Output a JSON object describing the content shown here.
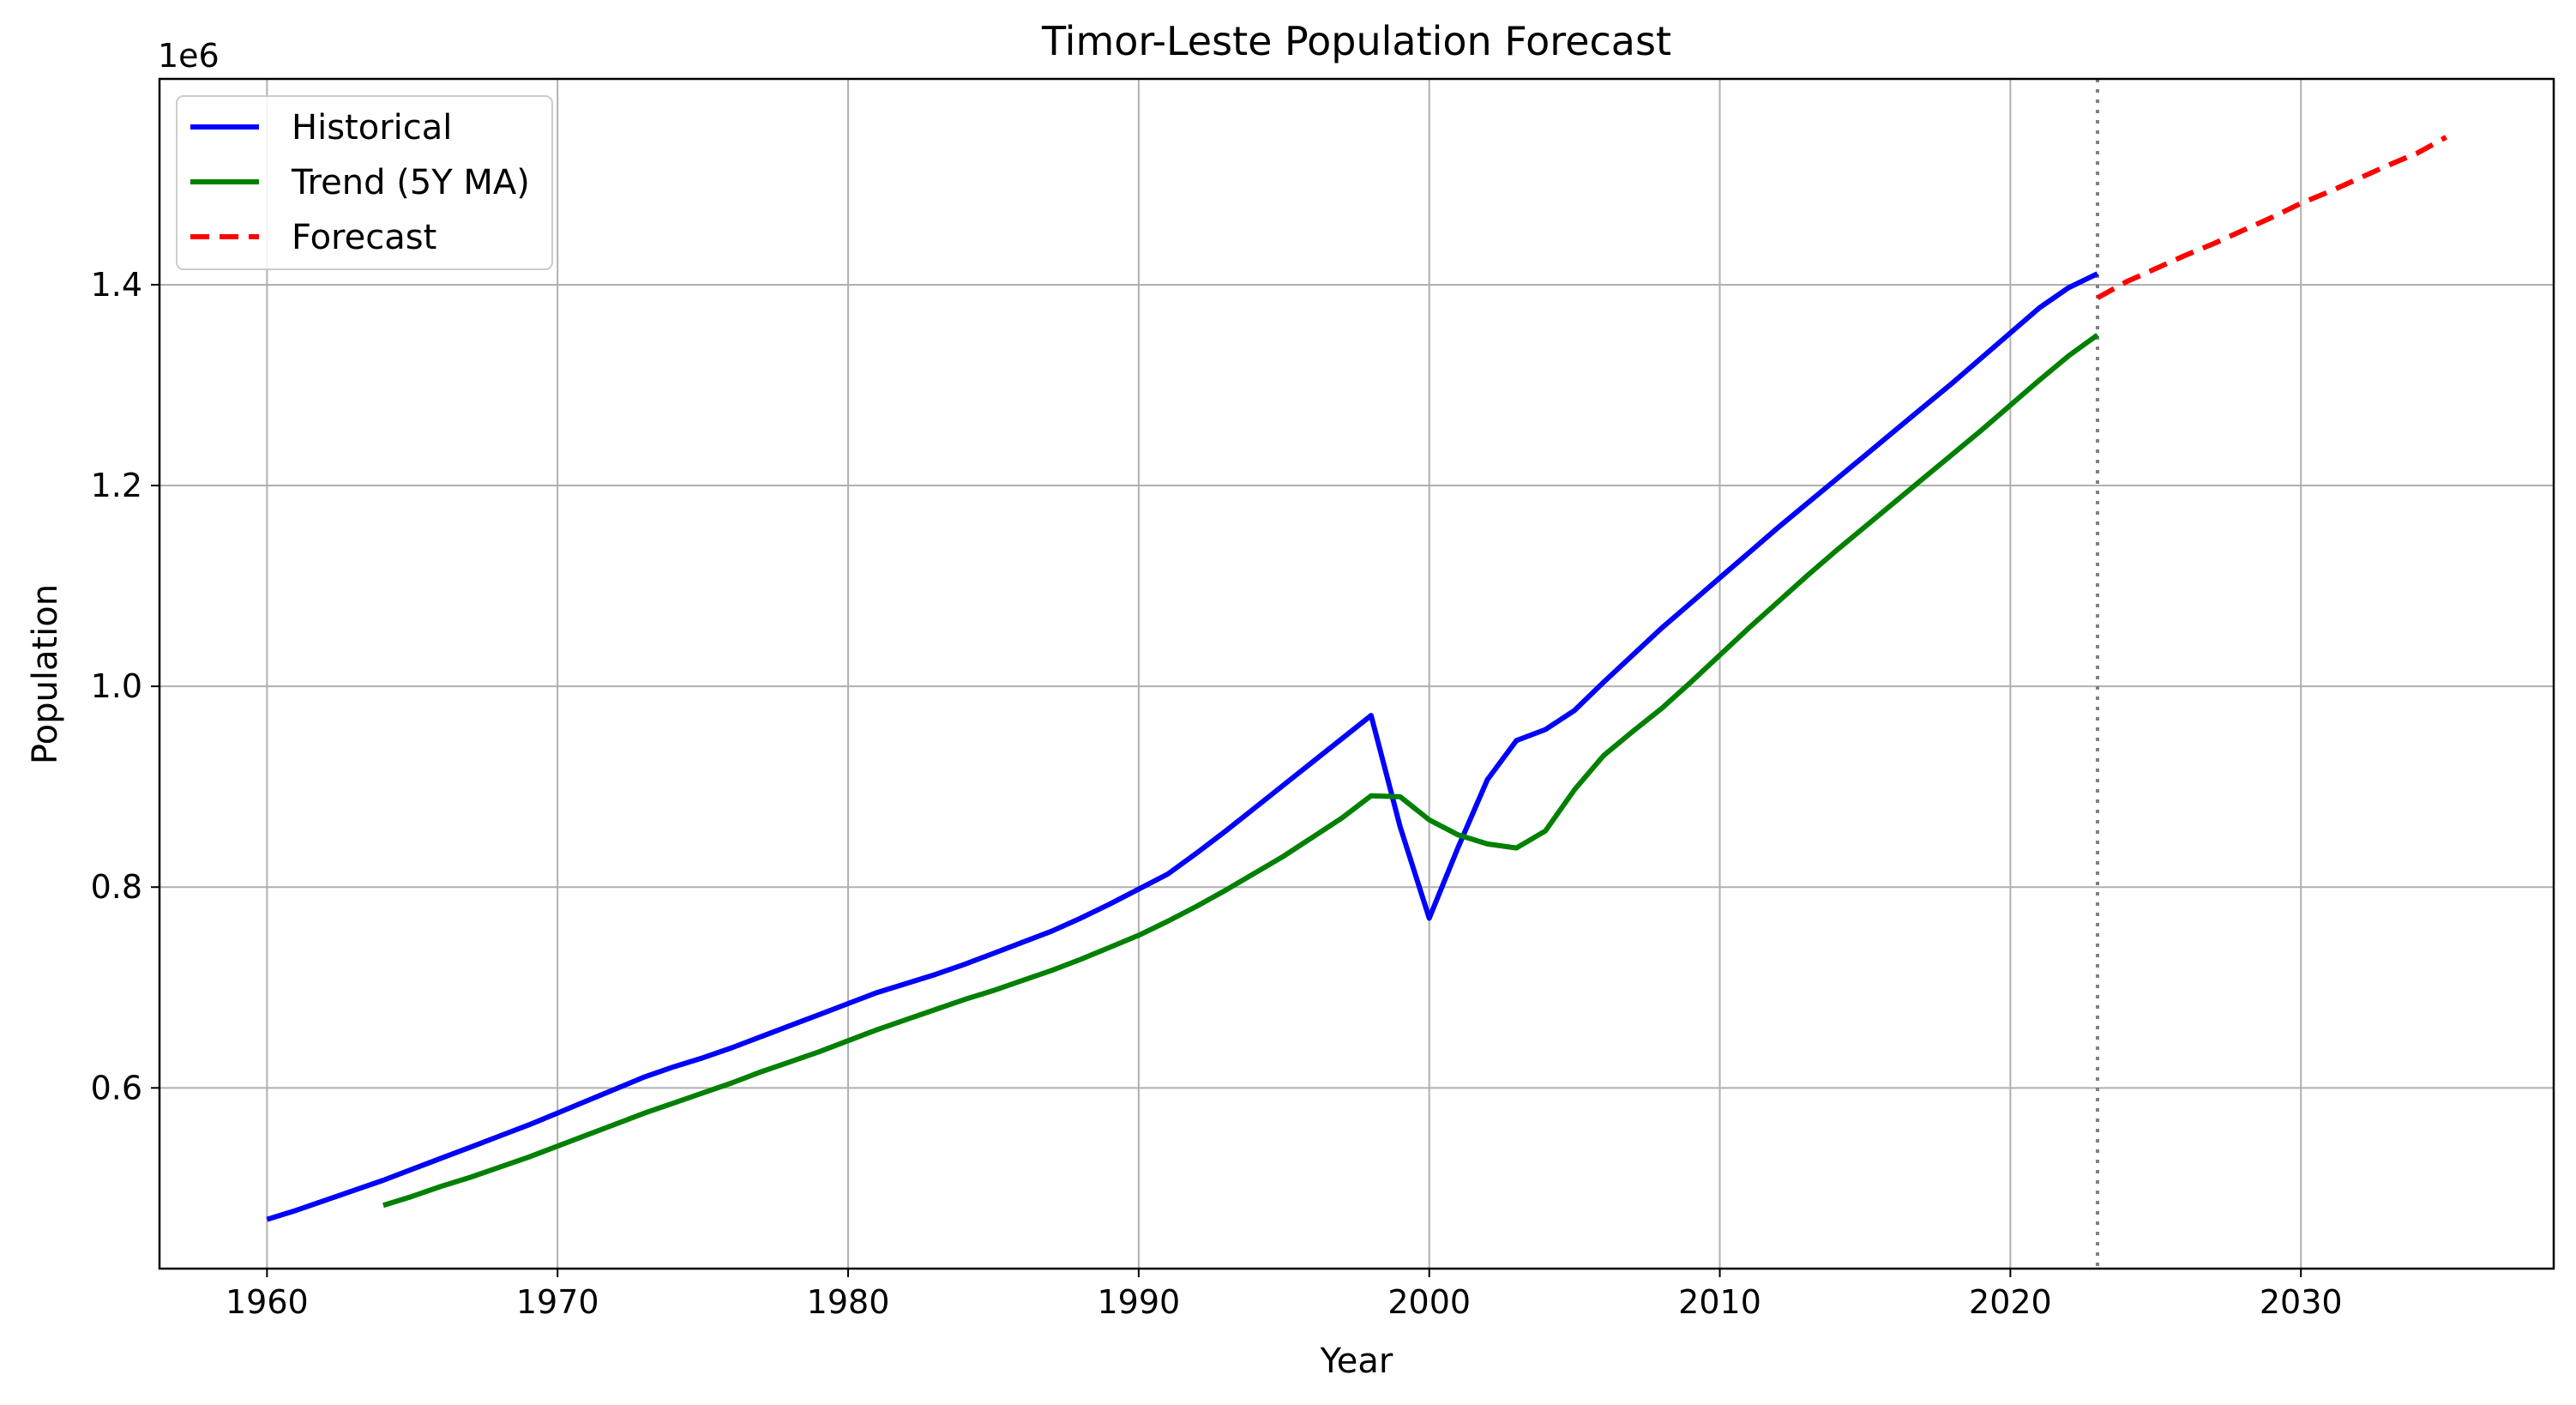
{
  "chart_data": {
    "type": "line",
    "title": "Timor-Leste Population Forecast",
    "xlabel": "Year",
    "ylabel": "Population",
    "y_offset_text": "1e6",
    "y_scale_factor": 1000000,
    "xlim": [
      1956.3,
      2038.7
    ],
    "ylim": [
      420000,
      1605000
    ],
    "x_ticks": [
      1960,
      1970,
      1980,
      1990,
      2000,
      2010,
      2020,
      2030
    ],
    "x_tick_labels": [
      "1960",
      "1970",
      "1980",
      "1990",
      "2000",
      "2010",
      "2020",
      "2030"
    ],
    "y_ticks": [
      600000,
      800000,
      1000000,
      1200000,
      1400000
    ],
    "y_tick_labels": [
      "0.6",
      "0.8",
      "1.0",
      "1.2",
      "1.4"
    ],
    "grid": true,
    "legend_position": "top-left",
    "forecast_start_marker": {
      "x": 2023,
      "color": "#808080",
      "style": "dotted"
    },
    "series": [
      {
        "name": "Historical",
        "color": "#0000ff",
        "style": "solid",
        "x": [
          1960,
          1961,
          1962,
          1963,
          1964,
          1965,
          1966,
          1967,
          1968,
          1969,
          1970,
          1971,
          1972,
          1973,
          1974,
          1975,
          1976,
          1977,
          1978,
          1979,
          1980,
          1981,
          1982,
          1983,
          1984,
          1985,
          1986,
          1987,
          1988,
          1989,
          1990,
          1991,
          1992,
          1993,
          1994,
          1995,
          1996,
          1997,
          1998,
          1999,
          2000,
          2001,
          2002,
          2003,
          2004,
          2005,
          2006,
          2007,
          2008,
          2009,
          2010,
          2011,
          2012,
          2013,
          2014,
          2015,
          2016,
          2017,
          2018,
          2019,
          2020,
          2021,
          2022,
          2023
        ],
        "y": [
          469000,
          478000,
          488000,
          498000,
          508000,
          519000,
          530000,
          541000,
          552000,
          563000,
          575000,
          587000,
          599000,
          611000,
          621000,
          630000,
          640000,
          651000,
          662000,
          673000,
          684000,
          695000,
          704000,
          713000,
          723000,
          734000,
          745000,
          756000,
          769000,
          783000,
          798000,
          813000,
          834000,
          856000,
          879000,
          902000,
          925000,
          948000,
          971000,
          860000,
          769000,
          840000,
          907000,
          946000,
          957000,
          976000,
          1004000,
          1031000,
          1058000,
          1083000,
          1108000,
          1133000,
          1158000,
          1182000,
          1206000,
          1230000,
          1254000,
          1278000,
          1302000,
          1327000,
          1352000,
          1377000,
          1397000,
          1411000
        ]
      },
      {
        "name": "Trend (5Y MA)",
        "color": "#008000",
        "style": "solid",
        "x": [
          1964,
          1965,
          1966,
          1967,
          1968,
          1969,
          1970,
          1971,
          1972,
          1973,
          1974,
          1975,
          1976,
          1977,
          1978,
          1979,
          1980,
          1981,
          1982,
          1983,
          1984,
          1985,
          1986,
          1987,
          1988,
          1989,
          1990,
          1991,
          1992,
          1993,
          1994,
          1995,
          1996,
          1997,
          1998,
          1999,
          2000,
          2001,
          2002,
          2003,
          2004,
          2005,
          2006,
          2007,
          2008,
          2009,
          2010,
          2011,
          2012,
          2013,
          2014,
          2015,
          2016,
          2017,
          2018,
          2019,
          2020,
          2021,
          2022,
          2023
        ],
        "y": [
          483000,
          492000,
          502000,
          511000,
          521000,
          531000,
          542000,
          553000,
          564000,
          575000,
          585000,
          595000,
          605000,
          616000,
          626000,
          636000,
          647000,
          658000,
          668000,
          678000,
          688000,
          697000,
          707000,
          717000,
          728000,
          740000,
          752000,
          766000,
          781000,
          797000,
          814000,
          831000,
          850000,
          869000,
          891000,
          890000,
          867000,
          852000,
          843000,
          839000,
          856000,
          897000,
          931000,
          955000,
          978000,
          1004000,
          1031000,
          1058000,
          1084000,
          1110000,
          1135000,
          1159000,
          1183000,
          1207000,
          1231000,
          1255000,
          1280000,
          1305000,
          1329000,
          1350000
        ]
      },
      {
        "name": "Forecast",
        "color": "#ff0000",
        "style": "dashed",
        "x": [
          2023,
          2024,
          2025,
          2026,
          2027,
          2028,
          2029,
          2030,
          2031,
          2032,
          2033,
          2034,
          2035
        ],
        "y": [
          1387000,
          1403000,
          1416000,
          1429000,
          1441000,
          1454000,
          1467000,
          1481000,
          1493000,
          1506000,
          1519000,
          1531000,
          1547000
        ]
      }
    ]
  }
}
